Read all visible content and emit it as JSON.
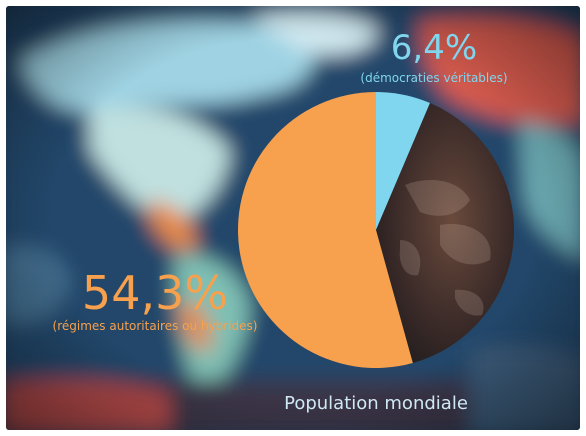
{
  "chart_data": {
    "type": "pie",
    "title": "Population mondiale",
    "slices": [
      {
        "value": 6.4,
        "display": "6,4%",
        "label": "(démocraties véritables)",
        "color": "#7fd6ee"
      },
      {
        "value": 39.3,
        "display": "",
        "label": "",
        "color": "#3a2a28"
      },
      {
        "value": 54.3,
        "display": "54,3%",
        "label": "(régimes autoritaires ou hybrides)",
        "color": "#f7a04d"
      }
    ],
    "legend": "none"
  },
  "colors": {
    "text_light": "#cfe9f4",
    "text_orange": "#f7a04d",
    "text_cyan": "#7fd6ee",
    "background_blur": "#2a4a66"
  }
}
